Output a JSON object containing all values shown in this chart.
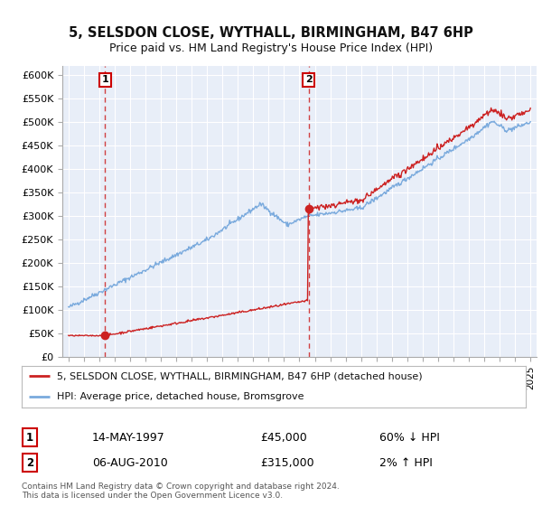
{
  "title": "5, SELSDON CLOSE, WYTHALL, BIRMINGHAM, B47 6HP",
  "subtitle": "Price paid vs. HM Land Registry's House Price Index (HPI)",
  "ylim": [
    0,
    620000
  ],
  "yticks": [
    0,
    50000,
    100000,
    150000,
    200000,
    250000,
    300000,
    350000,
    400000,
    450000,
    500000,
    550000,
    600000
  ],
  "ytick_labels": [
    "£0",
    "£50K",
    "£100K",
    "£150K",
    "£200K",
    "£250K",
    "£300K",
    "£350K",
    "£400K",
    "£450K",
    "£500K",
    "£550K",
    "£600K"
  ],
  "xlim_start": 1994.6,
  "xlim_end": 2025.4,
  "plot_bg_color": "#e8eef8",
  "fig_bg_color": "#ffffff",
  "grid_color": "#ffffff",
  "red_line_color": "#cc2222",
  "blue_line_color": "#7aaadd",
  "sale1_x": 1997.37,
  "sale1_y": 45000,
  "sale2_x": 2010.59,
  "sale2_y": 315000,
  "legend_label_red": "5, SELSDON CLOSE, WYTHALL, BIRMINGHAM, B47 6HP (detached house)",
  "legend_label_blue": "HPI: Average price, detached house, Bromsgrove",
  "annotation1_date": "14-MAY-1997",
  "annotation1_price": "£45,000",
  "annotation1_hpi": "60% ↓ HPI",
  "annotation2_date": "06-AUG-2010",
  "annotation2_price": "£315,000",
  "annotation2_hpi": "2% ↑ HPI",
  "footer": "Contains HM Land Registry data © Crown copyright and database right 2024.\nThis data is licensed under the Open Government Licence v3.0."
}
